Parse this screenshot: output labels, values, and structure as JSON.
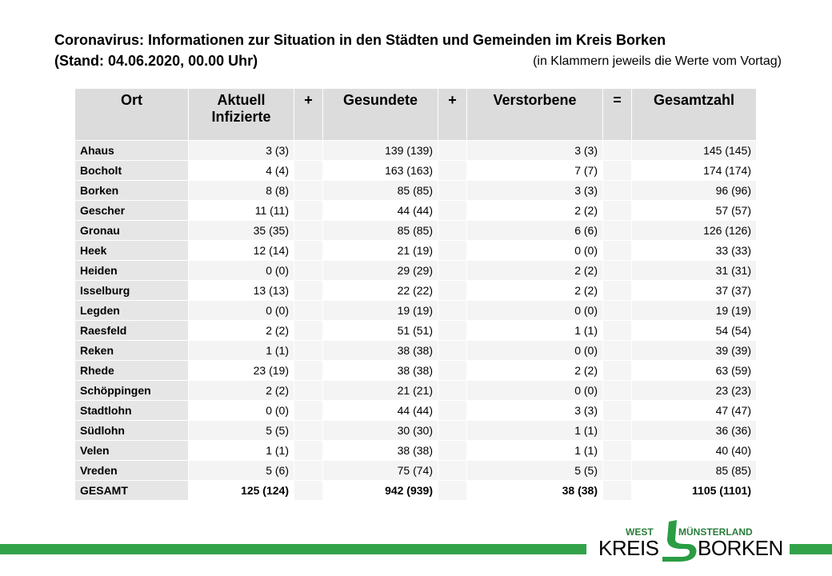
{
  "header": {
    "title": "Coronavirus: Informationen zur Situation in den Städten und Gemeinden im Kreis Borken",
    "stand": "(Stand: 04.06.2020, 00.00 Uhr)",
    "note": "(in Klammern jeweils die Werte vom Vortag)"
  },
  "table": {
    "headers": {
      "ort": "Ort",
      "aktuell": "Aktuell Infizierte",
      "plus1": "+",
      "gesundete": "Gesundete",
      "plus2": "+",
      "verstorbene": "Verstorbene",
      "equals": "=",
      "gesamtzahl": "Gesamtzahl"
    },
    "rows": [
      {
        "ort": "Ahaus",
        "aktuell": "3 (3)",
        "gesundete": "139 (139)",
        "verstorbene": "3 (3)",
        "gesamt": "145 (145)"
      },
      {
        "ort": "Bocholt",
        "aktuell": "4 (4)",
        "gesundete": "163 (163)",
        "verstorbene": "7 (7)",
        "gesamt": "174 (174)"
      },
      {
        "ort": "Borken",
        "aktuell": "8 (8)",
        "gesundete": "85 (85)",
        "verstorbene": "3 (3)",
        "gesamt": "96 (96)"
      },
      {
        "ort": "Gescher",
        "aktuell": "11 (11)",
        "gesundete": "44 (44)",
        "verstorbene": "2 (2)",
        "gesamt": "57 (57)"
      },
      {
        "ort": "Gronau",
        "aktuell": "35 (35)",
        "gesundete": "85 (85)",
        "verstorbene": "6 (6)",
        "gesamt": "126 (126)"
      },
      {
        "ort": "Heek",
        "aktuell": "12 (14)",
        "gesundete": "21 (19)",
        "verstorbene": "0 (0)",
        "gesamt": "33 (33)"
      },
      {
        "ort": "Heiden",
        "aktuell": "0 (0)",
        "gesundete": "29 (29)",
        "verstorbene": "2 (2)",
        "gesamt": "31 (31)"
      },
      {
        "ort": "Isselburg",
        "aktuell": "13 (13)",
        "gesundete": "22 (22)",
        "verstorbene": "2 (2)",
        "gesamt": "37 (37)"
      },
      {
        "ort": "Legden",
        "aktuell": "0 (0)",
        "gesundete": "19 (19)",
        "verstorbene": "0 (0)",
        "gesamt": "19 (19)"
      },
      {
        "ort": "Raesfeld",
        "aktuell": "2 (2)",
        "gesundete": "51 (51)",
        "verstorbene": "1 (1)",
        "gesamt": "54 (54)"
      },
      {
        "ort": "Reken",
        "aktuell": "1 (1)",
        "gesundete": "38 (38)",
        "verstorbene": "0 (0)",
        "gesamt": "39 (39)"
      },
      {
        "ort": "Rhede",
        "aktuell": "23 (19)",
        "gesundete": "38 (38)",
        "verstorbene": "2 (2)",
        "gesamt": "63 (59)"
      },
      {
        "ort": "Schöppingen",
        "aktuell": "2 (2)",
        "gesundete": "21 (21)",
        "verstorbene": "0 (0)",
        "gesamt": "23 (23)"
      },
      {
        "ort": "Stadtlohn",
        "aktuell": "0 (0)",
        "gesundete": "44 (44)",
        "verstorbene": "3 (3)",
        "gesamt": "47 (47)"
      },
      {
        "ort": "Südlohn",
        "aktuell": "5 (5)",
        "gesundete": "30 (30)",
        "verstorbene": "1 (1)",
        "gesamt": "36 (36)"
      },
      {
        "ort": "Velen",
        "aktuell": "1 (1)",
        "gesundete": "38 (38)",
        "verstorbene": "1 (1)",
        "gesamt": "40 (40)"
      },
      {
        "ort": "Vreden",
        "aktuell": "5 (6)",
        "gesundete": "75 (74)",
        "verstorbene": "5 (5)",
        "gesamt": "85 (85)"
      }
    ],
    "total": {
      "ort": "GESAMT",
      "aktuell": "125 (124)",
      "gesundete": "942 (939)",
      "verstorbene": "38 (38)",
      "gesamt": "1105 (1101)"
    }
  },
  "logo": {
    "west": "WEST",
    "muensterland": "MÜNSTERLAND",
    "kreis": "KREIS",
    "borken": "BORKEN"
  },
  "colors": {
    "brand_green": "#33a34a",
    "header_gray": "#dcdcdc"
  }
}
